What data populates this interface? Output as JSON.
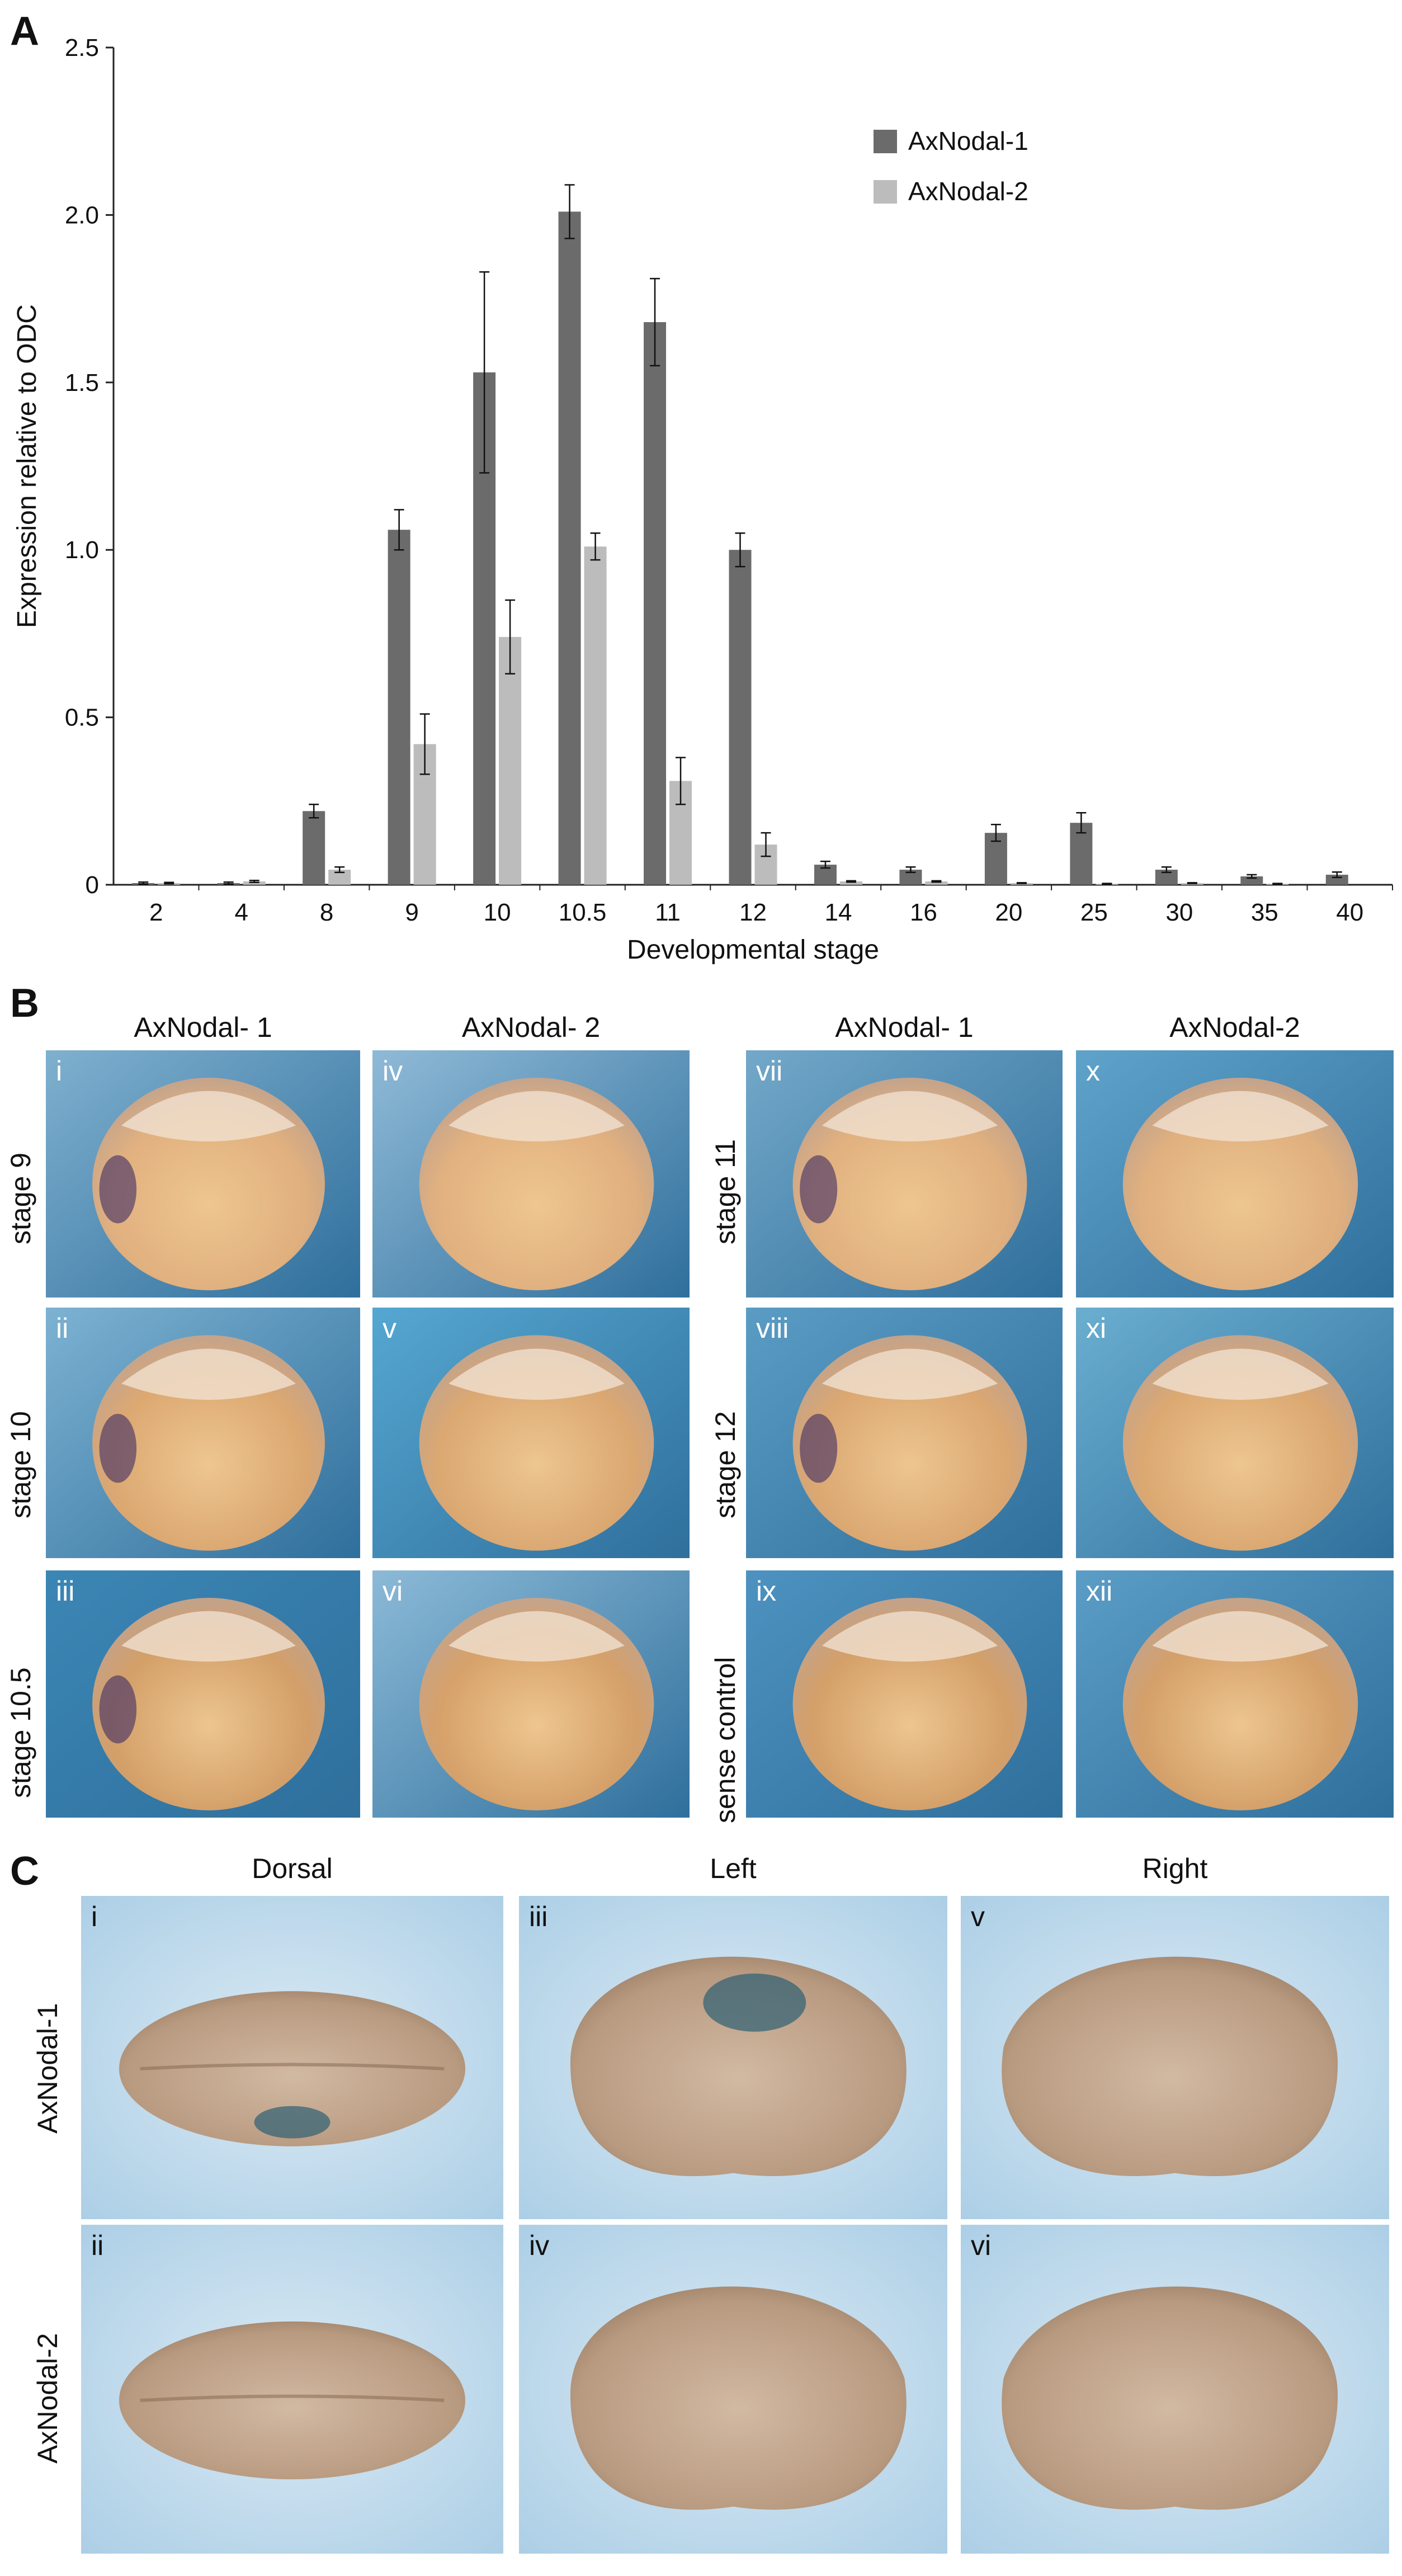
{
  "panelA": {
    "letter": "A",
    "chart_data": {
      "type": "bar",
      "categories": [
        "2",
        "4",
        "8",
        "9",
        "10",
        "10.5",
        "11",
        "12",
        "14",
        "16",
        "20",
        "25",
        "30",
        "35",
        "40"
      ],
      "series": [
        {
          "name": "AxNodal-1",
          "color": "#6b6b6b",
          "values": [
            0.005,
            0.005,
            0.22,
            1.06,
            1.53,
            2.01,
            1.68,
            1.0,
            0.06,
            0.045,
            0.155,
            0.185,
            0.045,
            0.025,
            0.03
          ],
          "errors": [
            0.003,
            0.003,
            0.02,
            0.06,
            0.3,
            0.08,
            0.13,
            0.05,
            0.01,
            0.008,
            0.025,
            0.03,
            0.008,
            0.005,
            0.008
          ]
        },
        {
          "name": "AxNodal-2",
          "color": "#bcbcbc",
          "values": [
            0.005,
            0.01,
            0.045,
            0.42,
            0.74,
            1.01,
            0.31,
            0.12,
            0.01,
            0.01,
            0.005,
            0.003,
            0.005,
            0.003,
            0.0
          ],
          "errors": [
            0.002,
            0.003,
            0.008,
            0.09,
            0.11,
            0.04,
            0.07,
            0.035,
            0.002,
            0.002,
            0.001,
            0.001,
            0.001,
            0.001,
            0.0
          ]
        }
      ],
      "ylim": [
        0,
        2.5
      ],
      "yticks": [
        "0",
        "0.5",
        "1.0",
        "1.5",
        "2.0",
        "2.5"
      ],
      "ylabel": "Expression relative to ODC",
      "xlabel": "Developmental stage",
      "legend_position": "top-right",
      "grid": false
    }
  },
  "panelB": {
    "letter": "B",
    "column_titles": [
      "AxNodal- 1",
      "AxNodal- 2",
      "AxNodal- 1",
      "AxNodal-2"
    ],
    "row_labels_left": [
      "stage 9",
      "stage 10",
      "stage 10.5"
    ],
    "row_labels_right": [
      "stage 11",
      "stage 12",
      "sense control"
    ],
    "tiles": [
      {
        "id": "i",
        "bg": "#7fb0cf",
        "stain": true
      },
      {
        "id": "iv",
        "bg": "#8fbad7",
        "stain": false
      },
      {
        "id": "vii",
        "bg": "#73a8c9",
        "stain": true
      },
      {
        "id": "x",
        "bg": "#5fa3cb",
        "stain": false
      },
      {
        "id": "ii",
        "bg": "#7db2d2",
        "stain": true
      },
      {
        "id": "v",
        "bg": "#55a7d1",
        "stain": false
      },
      {
        "id": "viii",
        "bg": "#5a9cc4",
        "stain": true
      },
      {
        "id": "xi",
        "bg": "#6aaed0",
        "stain": false
      },
      {
        "id": "iii",
        "bg": "#3b86b5",
        "stain": true
      },
      {
        "id": "vi",
        "bg": "#8cbad7",
        "stain": false
      },
      {
        "id": "ix",
        "bg": "#4d92c0",
        "stain": false
      },
      {
        "id": "xii",
        "bg": "#5a9dc6",
        "stain": false
      }
    ]
  },
  "panelC": {
    "letter": "C",
    "column_titles": [
      "Dorsal",
      "Left",
      "Right"
    ],
    "row_labels": [
      "AxNodal-1",
      "AxNodal-2"
    ],
    "tiles": [
      {
        "id": "i",
        "view": "dorsal",
        "stain": true
      },
      {
        "id": "iii",
        "view": "left",
        "stain": true
      },
      {
        "id": "v",
        "view": "right",
        "stain": false
      },
      {
        "id": "ii",
        "view": "dorsal",
        "stain": false
      },
      {
        "id": "iv",
        "view": "left",
        "stain": false
      },
      {
        "id": "vi",
        "view": "right",
        "stain": false
      }
    ]
  }
}
